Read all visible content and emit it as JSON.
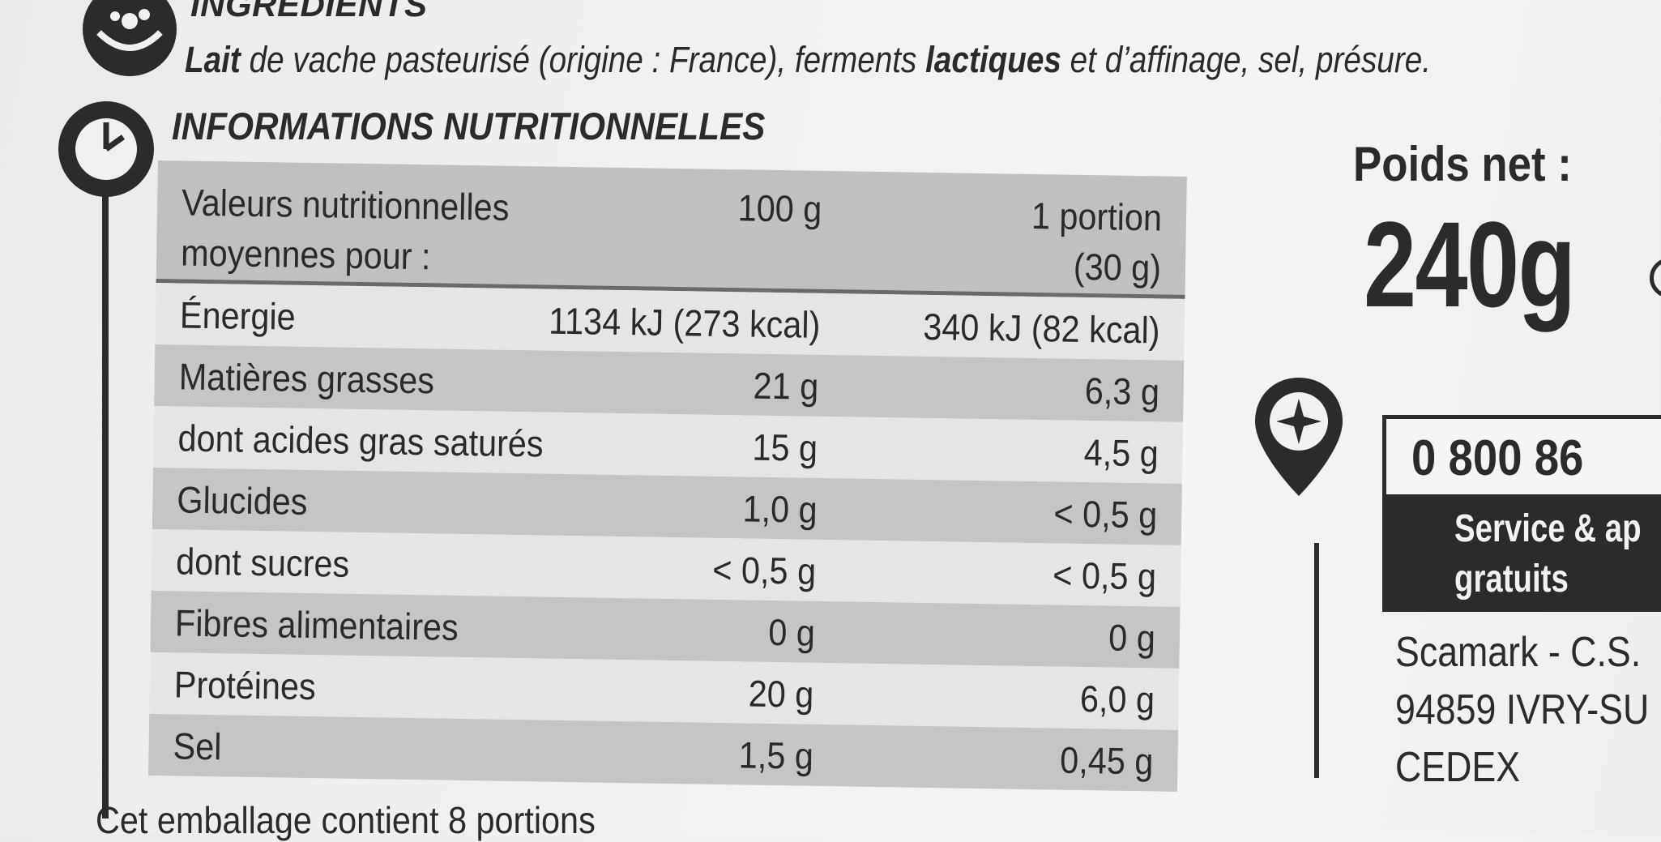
{
  "ingredients": {
    "icon": "ingredients-icon",
    "title": "INGRÉDIENTS",
    "lait": "Lait",
    "text_1": " de vache pasteurisé (origine : France), ferments ",
    "lactiques": "lactiques",
    "text_2": " et d’affinage, sel, présure."
  },
  "nutrition": {
    "icon": "clock-icon",
    "title": "INFORMATIONS NUTRITIONNELLES",
    "header": {
      "label": "Valeurs nutritionnelles moyennes pour :",
      "col_100g": "100 g",
      "col_portion": "1 portion (30 g)"
    },
    "rows": [
      {
        "label": "Énergie",
        "per_100g": "1134 kJ (273 kcal)",
        "per_portion": "340 kJ (82 kcal)"
      },
      {
        "label": "Matières grasses",
        "per_100g": "21 g",
        "per_portion": "6,3 g"
      },
      {
        "label": "dont acides gras saturés",
        "per_100g": "15 g",
        "per_portion": "4,5 g"
      },
      {
        "label": "Glucides",
        "per_100g": "1,0 g",
        "per_portion": "< 0,5 g"
      },
      {
        "label": "dont sucres",
        "per_100g": "< 0,5 g",
        "per_portion": "< 0,5 g"
      },
      {
        "label": "Fibres alimentaires",
        "per_100g": "0 g",
        "per_portion": "0 g"
      },
      {
        "label": "Protéines",
        "per_100g": "20 g",
        "per_portion": "6,0 g"
      },
      {
        "label": "Sel",
        "per_100g": "1,5 g",
        "per_portion": "0,45 g"
      }
    ],
    "footer": "Cet emballage contient 8 portions"
  },
  "weight": {
    "label": "Poids net :",
    "value": "240g"
  },
  "contact": {
    "pin_icon": "location-pin-icon",
    "phone": "0 800 86",
    "service_line1": "Service & ap",
    "service_line2": "gratuits",
    "address_line1": "Scamark - C.S.",
    "address_line2": "94859 IVRY-SU",
    "address_line3": "CEDEX"
  },
  "colors": {
    "ink": "#2b2b2b",
    "table_dark": "#c4c6c5",
    "table_light": "#e4e6e5",
    "background": "#f0f1f0"
  }
}
